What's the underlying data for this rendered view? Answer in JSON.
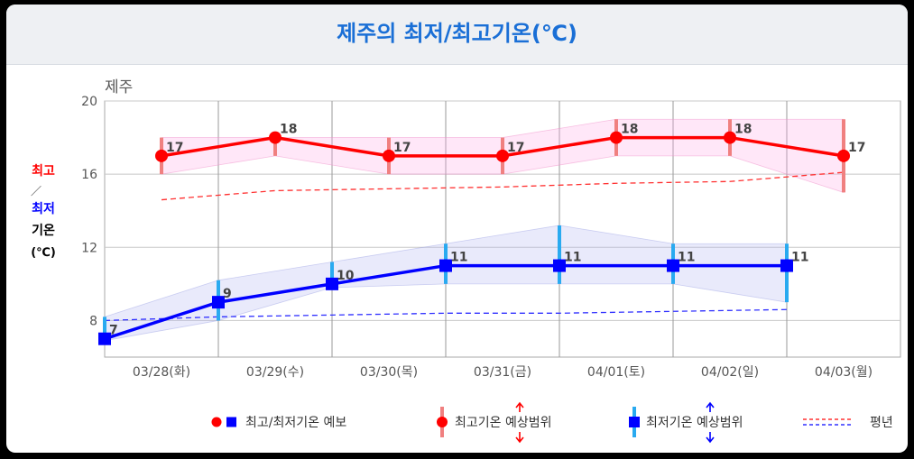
{
  "title": "제주의 최저/최고기온(℃)",
  "station": "제주",
  "y_axis_title": {
    "high": "최고",
    "sep": "／",
    "low": "최저",
    "l3": "기온",
    "l4": "(℃)"
  },
  "legend": {
    "forecast": "최고/최저기온 예보",
    "high_range": "최고기온 예상범위",
    "low_range": "최저기온 예상범위",
    "normal": "평년"
  },
  "colors": {
    "high": "#ff0000",
    "low": "#0000ff",
    "high_range": "#f08080",
    "low_range": "#29aaf0",
    "title": "#1a6fd6"
  },
  "chart_data": {
    "type": "line",
    "categories": [
      "03/28(화)",
      "03/29(수)",
      "03/30(목)",
      "03/31(금)",
      "04/01(토)",
      "04/02(일)",
      "04/03(월)"
    ],
    "ylim": [
      6,
      20
    ],
    "yticks": [
      8,
      12,
      16,
      20
    ],
    "grid": true,
    "series": [
      {
        "name": "최고기온",
        "x": [
          0.5,
          1.5,
          2.5,
          3.5,
          4.5,
          5.5,
          6.5
        ],
        "values": [
          17,
          18,
          17,
          17,
          18,
          18,
          17
        ],
        "range_low": [
          16,
          17,
          16,
          16,
          17,
          17,
          15
        ],
        "range_high": [
          18,
          18,
          18,
          18,
          19,
          19,
          19
        ]
      },
      {
        "name": "최저기온",
        "x": [
          0,
          1,
          2,
          3,
          4,
          5,
          6
        ],
        "values": [
          7,
          9,
          10,
          11,
          11,
          11,
          11
        ],
        "range_low": [
          6.9,
          8,
          9.8,
          10,
          10,
          10,
          9
        ],
        "range_high": [
          8.2,
          10.2,
          11.2,
          12.2,
          13.2,
          12.2,
          12.2
        ]
      },
      {
        "name": "평년 최고",
        "x": [
          0.5,
          1.5,
          2.5,
          3.5,
          4.5,
          5.5,
          6.5
        ],
        "values": [
          14.6,
          15.1,
          15.2,
          15.3,
          15.5,
          15.6,
          16.1
        ]
      },
      {
        "name": "평년 최저",
        "x": [
          0,
          1,
          2,
          3,
          4,
          5,
          6
        ],
        "values": [
          8.0,
          8.2,
          8.3,
          8.4,
          8.4,
          8.5,
          8.6
        ]
      }
    ]
  }
}
